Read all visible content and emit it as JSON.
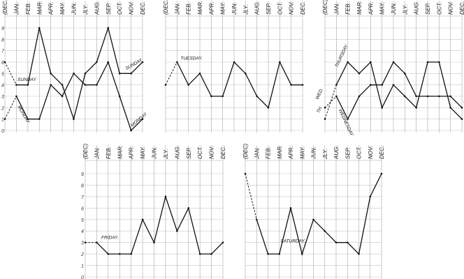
{
  "chart_data": [
    {
      "type": "line",
      "months": [
        "(DEC.)",
        "JAN.",
        "FEB.",
        "MAR.",
        "APR.",
        "MAY.",
        "JUN.",
        "JLY.",
        "AUG.",
        "SEP.",
        "OCT.",
        "NOV.",
        "DEC."
      ],
      "yticks": [
        "0",
        "1",
        "2",
        "3",
        "4",
        "5",
        "6",
        "7",
        "8",
        "9"
      ],
      "ylim": [
        0,
        9
      ],
      "grid": true,
      "series": [
        {
          "name": "SUNDAY",
          "values": [
            6,
            4,
            4,
            9,
            5,
            4,
            1,
            5,
            6,
            9,
            5,
            5,
            6
          ],
          "labels": [
            "SUNDAY",
            "SUNDAY"
          ]
        },
        {
          "name": "MONDAY",
          "values": [
            1,
            3,
            1,
            1,
            4,
            3,
            5,
            4,
            4,
            6,
            3,
            0,
            1
          ],
          "labels": [
            "MONDAY",
            "MONDAY"
          ]
        }
      ]
    },
    {
      "type": "line",
      "months": [
        "(DEC.)",
        "JAN.",
        "FEB.",
        "MAR.",
        "APR.",
        "MAY.",
        "JUN.",
        "JLY.",
        "AUG.",
        "SEP.",
        "OCT.",
        "NOV.",
        "DEC."
      ],
      "yticks": [],
      "ylim": [
        0,
        9
      ],
      "grid": true,
      "series": [
        {
          "name": "TUESDAY.",
          "values": [
            4,
            6,
            4,
            5,
            3,
            3,
            6,
            5,
            3,
            2,
            6,
            4,
            4
          ],
          "labels": [
            "TUESDAY."
          ]
        }
      ]
    },
    {
      "type": "line",
      "months": [
        "(DEC)",
        "JAN.",
        "FEB.",
        "MAR.",
        "APR.",
        "MAY.",
        "JUN.",
        "JLY.",
        "AUG.",
        "SEP.",
        "OCT.",
        "NOV.",
        "DEC."
      ],
      "yticks": [],
      "ylim": [
        0,
        9
      ],
      "grid": true,
      "series": [
        {
          "name": "WEDNESDAY",
          "values": [
            2,
            3,
            1,
            3,
            4,
            4,
            6,
            5,
            3,
            3,
            3,
            3,
            2
          ],
          "labels": [
            "WED.",
            "WEDNESDAY",
            "WED."
          ]
        },
        {
          "name": "THURSDAY",
          "values": [
            1,
            4,
            6,
            5,
            6,
            2,
            4,
            3,
            2,
            6,
            6,
            2,
            1
          ],
          "labels": [
            "TH.",
            "THURSDAY",
            "TH."
          ]
        }
      ]
    },
    {
      "type": "line",
      "months": [
        "(DEC)",
        "JAN.",
        "FEB.",
        "MAR.",
        "APR.",
        "MAY.",
        "JUN.",
        "JLY.",
        "AUG.",
        "SEP.",
        "OCT.",
        "NOV.",
        "DEC."
      ],
      "yticks": [
        "0",
        "1",
        "2",
        "3",
        "4",
        "5",
        "6",
        "7",
        "8",
        "9"
      ],
      "ylim": [
        0,
        9
      ],
      "grid": true,
      "series": [
        {
          "name": "FRIDAY.",
          "values": [
            3,
            3,
            2,
            2,
            2,
            5,
            3,
            7,
            4,
            6,
            2,
            2,
            3
          ],
          "labels": [
            "FRIDAY."
          ]
        }
      ]
    },
    {
      "type": "line",
      "months": [
        "(DEC)",
        "JAN.",
        "FEB.",
        "MAR.",
        "APR.",
        "MAY.",
        "JUN.",
        "JLY.",
        "AUG.",
        "SEP.",
        "OCT.",
        "NOV.",
        "DEC."
      ],
      "yticks": [],
      "ylim": [
        0,
        9
      ],
      "grid": true,
      "series": [
        {
          "name": "SATURDAY.",
          "values": [
            9,
            5,
            2,
            2,
            6,
            2,
            5,
            4,
            3,
            3,
            2,
            7,
            9
          ],
          "labels": [
            "SATURDAY."
          ]
        }
      ]
    }
  ]
}
